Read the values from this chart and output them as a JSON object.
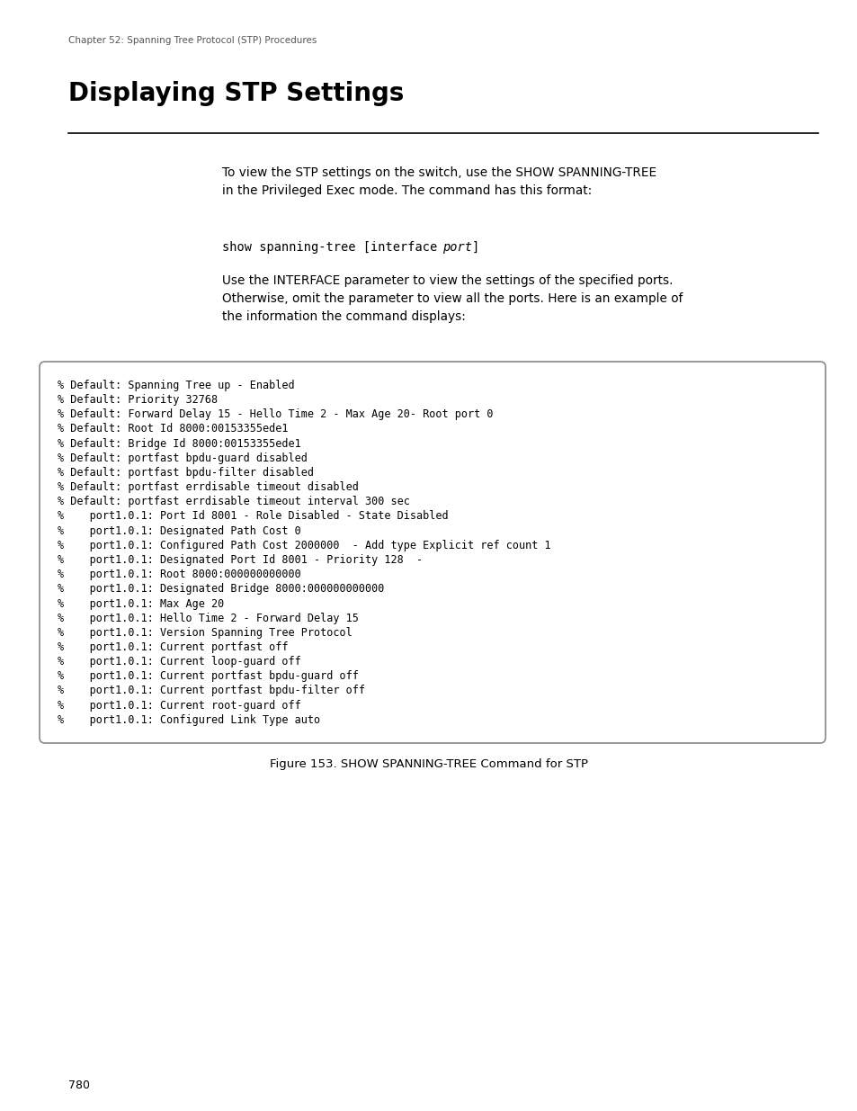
{
  "page_width": 9.54,
  "page_height": 12.35,
  "dpi": 100,
  "bg_color": "#ffffff",
  "header_text": "Chapter 52: Spanning Tree Protocol (STP) Procedures",
  "title": "Displaying STP Settings",
  "body_text_1": "To view the STP settings on the switch, use the SHOW SPANNING-TREE\nin the Privileged Exec mode. The command has this format:",
  "body_text_2": "Use the INTERFACE parameter to view the settings of the specified ports.\nOtherwise, omit the parameter to view all the ports. Here is an example of\nthe information the command displays:",
  "code_prefix": "show spanning-tree [interface ",
  "code_italic": "port",
  "code_suffix": "]",
  "terminal_lines": [
    "% Default: Spanning Tree up - Enabled",
    "% Default: Priority 32768",
    "% Default: Forward Delay 15 - Hello Time 2 - Max Age 20- Root port 0",
    "% Default: Root Id 8000:00153355ede1",
    "% Default: Bridge Id 8000:00153355ede1",
    "% Default: portfast bpdu-guard disabled",
    "% Default: portfast bpdu-filter disabled",
    "% Default: portfast errdisable timeout disabled",
    "% Default: portfast errdisable timeout interval 300 sec",
    "%    port1.0.1: Port Id 8001 - Role Disabled - State Disabled",
    "%    port1.0.1: Designated Path Cost 0",
    "%    port1.0.1: Configured Path Cost 2000000  - Add type Explicit ref count 1",
    "%    port1.0.1: Designated Port Id 8001 - Priority 128  -",
    "%    port1.0.1: Root 8000:000000000000",
    "%    port1.0.1: Designated Bridge 8000:000000000000",
    "%    port1.0.1: Max Age 20",
    "%    port1.0.1: Hello Time 2 - Forward Delay 15",
    "%    port1.0.1: Version Spanning Tree Protocol",
    "%    port1.0.1: Current portfast off",
    "%    port1.0.1: Current loop-guard off",
    "%    port1.0.1: Current portfast bpdu-guard off",
    "%    port1.0.1: Current portfast bpdu-filter off",
    "%    port1.0.1: Current root-guard off",
    "%    port1.0.1: Configured Link Type auto"
  ],
  "figure_caption": "Figure 153. SHOW SPANNING-TREE Command for STP",
  "footer_text": "780"
}
